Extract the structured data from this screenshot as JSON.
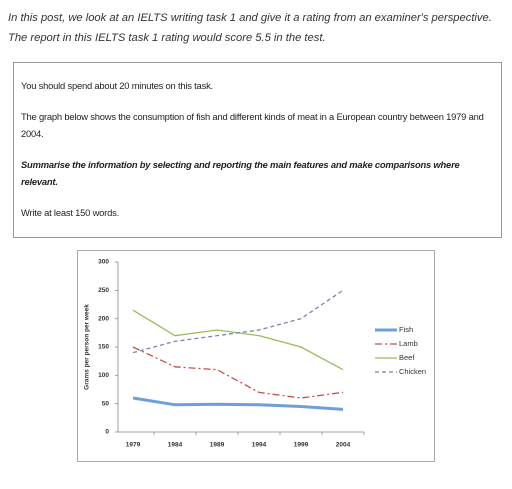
{
  "intro": {
    "lines": [
      "In this post, we look at an  IELTS writing task 1 and give it a rating from an examiner's perspective.",
      "The report in this IELTS task 1 rating would score 5.5 in the test."
    ]
  },
  "task": {
    "paragraphs": [
      "You should spend about 20 minutes on this task.",
      "The graph below shows the consumption of fish and different kinds of meat in a European country between 1979 and 2004.",
      "Summarise the information by selecting and reporting the main features and make comparisons where relevant.",
      "Write at least 150 words."
    ]
  },
  "chart_data": {
    "type": "line",
    "y_label": "Grams per person per week",
    "categories": [
      "1979",
      "1984",
      "1989",
      "1994",
      "1999",
      "2004"
    ],
    "series": [
      {
        "name": "Fish",
        "color": "#6f9fd8",
        "style": "solid",
        "values": [
          60,
          48,
          49,
          48,
          45,
          40
        ]
      },
      {
        "name": "Lamb",
        "color": "#c0504d",
        "style": "dash-dot",
        "values": [
          150,
          115,
          110,
          70,
          60,
          70
        ]
      },
      {
        "name": "Beef",
        "color": "#9bbb59",
        "style": "solid",
        "values": [
          215,
          170,
          180,
          170,
          150,
          110
        ]
      },
      {
        "name": "Chicken",
        "color": "#7f82a8",
        "style": "dashed",
        "values": [
          140,
          160,
          170,
          180,
          200,
          250
        ]
      }
    ],
    "ylim": [
      0,
      300
    ],
    "yticks": [
      0,
      50,
      100,
      150,
      200,
      250,
      300
    ],
    "grid": false,
    "legend": "right"
  }
}
